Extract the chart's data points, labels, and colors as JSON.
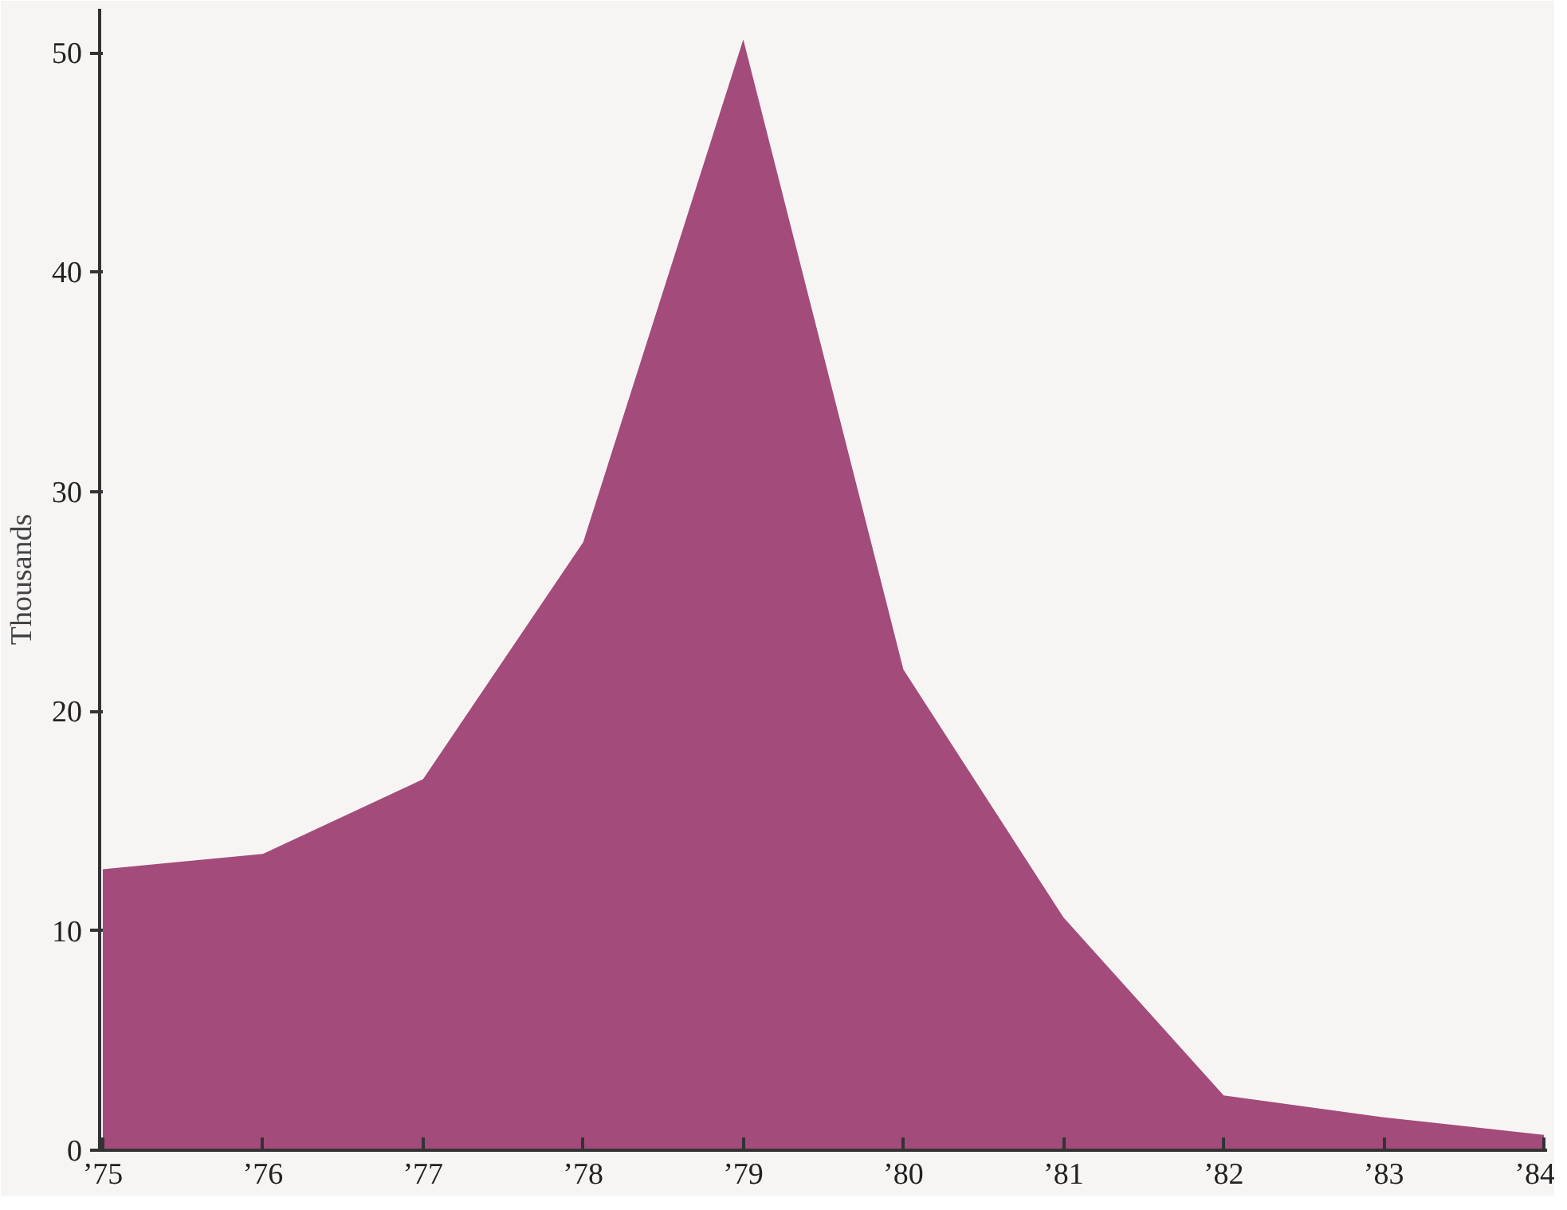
{
  "chart_data": {
    "type": "area",
    "ylabel": "Thousands",
    "categories": [
      "’75",
      "’76",
      "’77",
      "’78",
      "’79",
      "’80",
      "’81",
      "’82",
      "’83",
      "’84"
    ],
    "values": [
      12.8,
      13.5,
      16.9,
      27.7,
      50.6,
      21.9,
      10.6,
      2.5,
      1.5,
      0.7
    ],
    "color": "#a34b7b",
    "ylim": [
      0,
      52
    ],
    "yticks": [
      0,
      10,
      20,
      30,
      40,
      50
    ],
    "grid": false
  }
}
